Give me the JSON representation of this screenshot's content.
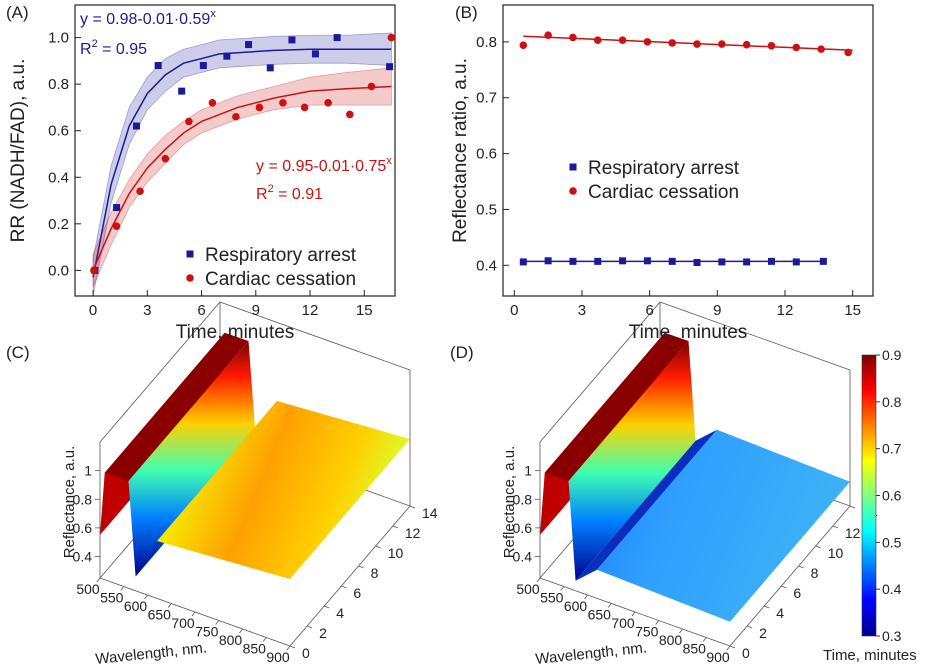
{
  "chart_data": [
    {
      "type": "scatter",
      "panel": "(A)",
      "xlabel": "Time, minutes",
      "ylabel": "RR (NADH/FAD), a.u.",
      "xlim": [
        -1,
        16.7
      ],
      "ylim": [
        -0.11,
        1.14
      ],
      "xticks": [
        0,
        3,
        6,
        9,
        12,
        15
      ],
      "yticks": [
        {
          "value": 0,
          "label": "0.0"
        },
        {
          "value": 0.2,
          "label": "0.2"
        },
        {
          "value": 0.4,
          "label": "0.4"
        },
        {
          "value": 0.6,
          "label": "0.6"
        },
        {
          "value": 0.8,
          "label": "0.8"
        },
        {
          "value": 1,
          "label": "1.0"
        }
      ],
      "legend": "lower right",
      "series": [
        {
          "name": "Respiratory arrest",
          "color": "#1a1a9c",
          "marker": "square",
          "x": [
            0.1,
            1.3,
            2.4,
            3.6,
            4.9,
            6.1,
            7.4,
            8.6,
            9.8,
            11.0,
            12.3,
            13.5,
            16.4
          ],
          "values": [
            0.0,
            0.27,
            0.62,
            0.88,
            0.77,
            0.88,
            0.92,
            0.97,
            0.87,
            0.99,
            0.93,
            1.0,
            0.875
          ]
        },
        {
          "name": "Cardiac cessation",
          "color": "#cc1111",
          "marker": "circle",
          "x": [
            0.05,
            1.3,
            2.6,
            4.0,
            5.3,
            6.6,
            7.9,
            9.2,
            10.5,
            11.7,
            13.0,
            14.2,
            15.4,
            16.5
          ],
          "values": [
            0.0,
            0.19,
            0.34,
            0.48,
            0.64,
            0.72,
            0.66,
            0.7,
            0.72,
            0.7,
            0.72,
            0.67,
            0.79,
            1.0
          ]
        }
      ],
      "fit_lines": [
        {
          "color": "#1a1a9c",
          "x": [
            0,
            1,
            2,
            3,
            4,
            5,
            6,
            7,
            8,
            10,
            12,
            14,
            16.5
          ],
          "values": [
            -0.03,
            0.37,
            0.62,
            0.76,
            0.84,
            0.89,
            0.91,
            0.93,
            0.935,
            0.945,
            0.95,
            0.95,
            0.95
          ],
          "lower": [
            -0.11,
            0.29,
            0.54,
            0.69,
            0.77,
            0.83,
            0.85,
            0.87,
            0.875,
            0.885,
            0.89,
            0.89,
            0.88
          ],
          "upper": [
            0.05,
            0.45,
            0.7,
            0.83,
            0.91,
            0.95,
            0.97,
            0.99,
            0.995,
            1.005,
            1.01,
            1.01,
            1.02
          ]
        },
        {
          "color": "#cc1111",
          "x": [
            0,
            1,
            2,
            3,
            4,
            5,
            6,
            7,
            8,
            10,
            12,
            14,
            16.5
          ],
          "values": [
            0,
            0.18,
            0.33,
            0.44,
            0.52,
            0.59,
            0.64,
            0.67,
            0.7,
            0.74,
            0.77,
            0.78,
            0.79
          ],
          "lower": [
            -0.07,
            0.11,
            0.27,
            0.38,
            0.46,
            0.54,
            0.59,
            0.62,
            0.65,
            0.69,
            0.71,
            0.71,
            0.71
          ],
          "upper": [
            0.07,
            0.25,
            0.39,
            0.5,
            0.58,
            0.64,
            0.69,
            0.72,
            0.75,
            0.79,
            0.83,
            0.85,
            0.87
          ]
        }
      ],
      "annotations": [
        {
          "text": "y = 0.98-0.01·0.59",
          "sup": "x",
          "color": "#1a1a9c"
        },
        {
          "text": "R",
          "sup": "2",
          "rest": " = 0.95",
          "color": "#1a1a9c"
        },
        {
          "text": "y = 0.95-0.01·0.75",
          "sup": "x",
          "color": "#cc1111"
        },
        {
          "text": "R",
          "sup": "2",
          "rest": " = 0.91",
          "color": "#cc1111"
        }
      ]
    },
    {
      "type": "scatter",
      "panel": "(B)",
      "xlabel": "Time, minutes",
      "ylabel": "Reflectance ratio, a.u.",
      "xlim": [
        -0.5,
        15.9
      ],
      "ylim": [
        0.345,
        0.866
      ],
      "xticks": [
        0,
        3,
        6,
        9,
        12,
        15
      ],
      "yticks": [
        0.4,
        0.5,
        0.6,
        0.7,
        0.8
      ],
      "legend": "center",
      "series": [
        {
          "name": "Respiratory arrest",
          "color": "#1a1a9c",
          "marker": "square",
          "x": [
            0.4,
            1.5,
            2.6,
            3.7,
            4.8,
            5.9,
            7.0,
            8.1,
            9.2,
            10.3,
            11.4,
            12.5,
            13.7
          ],
          "values": [
            0.406,
            0.408,
            0.407,
            0.407,
            0.408,
            0.408,
            0.407,
            0.405,
            0.406,
            0.406,
            0.407,
            0.406,
            0.407
          ]
        },
        {
          "name": "Cardiac cessation",
          "color": "#cc1111",
          "marker": "circle",
          "x": [
            0.4,
            1.5,
            2.6,
            3.7,
            4.8,
            5.9,
            7.0,
            8.1,
            9.2,
            10.3,
            11.4,
            12.5,
            13.6,
            14.8
          ],
          "values": [
            0.794,
            0.812,
            0.808,
            0.803,
            0.803,
            0.8,
            0.798,
            0.796,
            0.796,
            0.795,
            0.793,
            0.79,
            0.787,
            0.781
          ]
        }
      ],
      "fit_lines": [
        {
          "color": "#1a1a9c",
          "x": [
            0.4,
            13.8
          ],
          "values": [
            0.407,
            0.407
          ]
        },
        {
          "color": "#cc1111",
          "x": [
            0.4,
            15
          ],
          "values": [
            0.81,
            0.785
          ]
        }
      ]
    },
    {
      "type": "surface",
      "panel": "(C)",
      "xlabel": "Wavelength, nm.",
      "zlabel": "Reflectance, a.u.",
      "xlim": [
        500,
        900
      ],
      "ylim": [
        0,
        14
      ],
      "zlim": [
        0.25,
        1.2
      ],
      "xticks": [
        500,
        550,
        600,
        650,
        700,
        750,
        800,
        850,
        900
      ],
      "yticks": [
        0,
        2,
        4,
        6,
        8,
        10,
        12,
        14
      ],
      "zticks": [
        0.4,
        0.6,
        0.8,
        1
      ]
    },
    {
      "type": "surface",
      "panel": "(D)",
      "xlabel": "Wavelength, nm.",
      "ylabel": "Time, minutes",
      "zlabel": "Reflectance, a.u.",
      "xlim": [
        500,
        900
      ],
      "ylim": [
        0,
        14
      ],
      "zlim": [
        0.25,
        1.2
      ],
      "xticks": [
        500,
        550,
        600,
        650,
        700,
        750,
        800,
        850,
        900
      ],
      "yticks": [
        0,
        2,
        4,
        6,
        8,
        10,
        12,
        14
      ],
      "zticks": [
        0.4,
        0.6,
        0.8,
        1
      ],
      "colorbar": {
        "clim": [
          0.3,
          0.9
        ],
        "ticks": [
          0.3,
          0.4,
          0.5,
          0.6,
          0.7,
          0.8,
          0.9
        ]
      }
    }
  ]
}
